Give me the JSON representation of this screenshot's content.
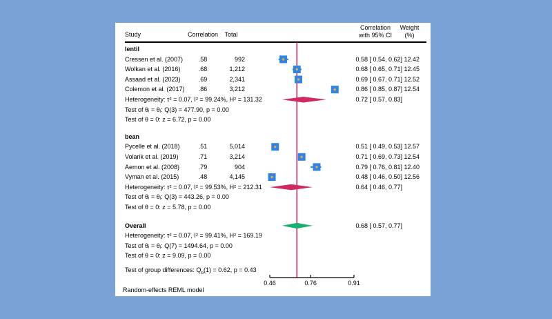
{
  "colors": {
    "background": "#7ba2d7",
    "panel": "#ffffff",
    "text": "#000000",
    "marker": "#2d85e5",
    "marker_center": "#f2a33c",
    "group_diamond": "#d12865",
    "overall_diamond": "#17b06e",
    "ref_line": "#d12865",
    "axis": "#000000"
  },
  "header": {
    "study": "Study",
    "correlation": "Correlation",
    "total": "Total",
    "ci_line1": "Correlation",
    "ci_line2": "with 95% CI",
    "weight_line1": "Weight",
    "weight_line2": "(%)"
  },
  "footer": {
    "note": "Random-effects REML model"
  },
  "chart_data": {
    "type": "forest",
    "x_scale": "fisher-z",
    "x_ticks": [
      0.46,
      0.76,
      0.91
    ],
    "x_tick_labels": [
      "0.46",
      "0.76",
      "0.91"
    ],
    "ref_line": 0.68,
    "groups": [
      {
        "name": "lentil",
        "studies": [
          {
            "label": "Cressen et al. (2007)",
            "correlation": ".58",
            "total": "992",
            "est": 0.58,
            "lo": 0.54,
            "hi": 0.62,
            "ci_text": "0.58 [ 0.54, 0.62]",
            "weight": "12.42"
          },
          {
            "label": "Wolkan et al. (2016)",
            "correlation": ".68",
            "total": "1,212",
            "est": 0.68,
            "lo": 0.65,
            "hi": 0.71,
            "ci_text": "0.68 [ 0.65, 0.71]",
            "weight": "12.45"
          },
          {
            "label": "Assaad et al. (2023)",
            "correlation": ".69",
            "total": "2,341",
            "est": 0.69,
            "lo": 0.67,
            "hi": 0.71,
            "ci_text": "0.69 [ 0.67, 0.71]",
            "weight": "12.52"
          },
          {
            "label": "Colemon et al. (2017)",
            "correlation": ".86",
            "total": "3,212",
            "est": 0.86,
            "lo": 0.85,
            "hi": 0.87,
            "ci_text": "0.86 [ 0.85, 0.87]",
            "weight": "12.54"
          }
        ],
        "heterogeneity": "Heterogeneity: τ² = 0.07, I² = 99.24%, H² = 131.32",
        "summary": {
          "est": 0.72,
          "lo": 0.57,
          "hi": 0.83,
          "ci_text": "0.72 [ 0.57, 0.83]"
        },
        "tests": [
          "Test of θᵢ = θⱼ: Q(3) = 477.90, p = 0.00",
          "Test of θ = 0: z = 6.72, p = 0.00"
        ]
      },
      {
        "name": "bean",
        "studies": [
          {
            "label": "Pycelle et al. (2018)",
            "correlation": ".51",
            "total": "5,014",
            "est": 0.51,
            "lo": 0.49,
            "hi": 0.53,
            "ci_text": "0.51 [ 0.49, 0.53]",
            "weight": "12.57"
          },
          {
            "label": "Volarik et al. (2019)",
            "correlation": ".71",
            "total": "3,214",
            "est": 0.71,
            "lo": 0.69,
            "hi": 0.73,
            "ci_text": "0.71 [ 0.69, 0.73]",
            "weight": "12.54"
          },
          {
            "label": "Aemon et al. (2008)",
            "correlation": ".79",
            "total": "904",
            "est": 0.79,
            "lo": 0.76,
            "hi": 0.81,
            "ci_text": "0.79 [ 0.76, 0.81]",
            "weight": "12.40"
          },
          {
            "label": "Vyman et al. (2015)",
            "correlation": ".48",
            "total": "4,145",
            "est": 0.48,
            "lo": 0.46,
            "hi": 0.5,
            "ci_text": "0.48 [ 0.46, 0.50]",
            "weight": "12.56"
          }
        ],
        "heterogeneity": "Heterogeneity: τ² = 0.07, I² = 99.53%, H² = 212.31",
        "summary": {
          "est": 0.64,
          "lo": 0.46,
          "hi": 0.77,
          "ci_text": "0.64 [ 0.46, 0.77]"
        },
        "tests": [
          "Test of θᵢ = θⱼ: Q(3) = 443.26, p = 0.00",
          "Test of θ = 0: z = 5.78, p = 0.00"
        ]
      }
    ],
    "overall": {
      "label": "Overall",
      "heterogeneity": "Heterogeneity: τ² = 0.07, I² = 99.41%, H² = 169.19",
      "summary": {
        "est": 0.68,
        "lo": 0.57,
        "hi": 0.77,
        "ci_text": "0.68 [ 0.57, 0.77]"
      },
      "tests": [
        "Test of θᵢ = θⱼ: Q(7) = 1494.64, p = 0.00",
        "Test of θ = 0: z = 9.09, p = 0.00"
      ],
      "diff_test": {
        "prefix": "Test of group differences: Q",
        "sub": "b",
        "suffix": "(1) = 0.62, p = 0.43"
      }
    }
  }
}
